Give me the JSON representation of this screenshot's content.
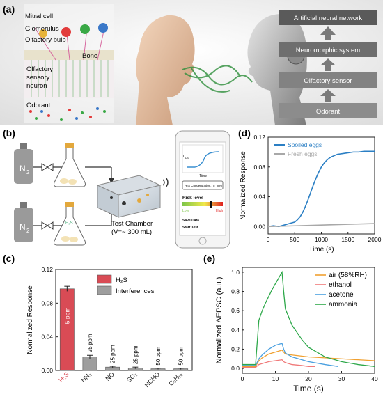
{
  "panel_letters": {
    "a": "(a)",
    "b": "(b)",
    "c": "(c)",
    "d": "(d)",
    "e": "(e)"
  },
  "panel_a": {
    "bio_labels": [
      "Mitral cell",
      "Glomerulus",
      "Olfactory bulb",
      "Bone",
      "Olfactory sensory neuron",
      "Odorant"
    ],
    "sensory_neuron_line1": "Olfactory",
    "sensory_neuron_line2": "sensory",
    "sensory_neuron_line3": "neuron",
    "artificial_stack": [
      "Artificial neural network",
      "Neuromorphic system",
      "Olfactory sensor",
      "Odorant"
    ]
  },
  "panel_b": {
    "cylinder_label": "N",
    "cylinder_sub": "2",
    "flask_gas": "H₂S",
    "chamber_title": "Test Chamber",
    "chamber_volume": "(V=~ 300 mL)",
    "phone": {
      "ylabel": "I",
      "ylabel_sub": "DS",
      "xlabel": "Time",
      "concentration_label": "H₂S Concentration:",
      "concentration_value": "5",
      "concentration_unit": "ppm",
      "risk_title": "Risk level",
      "risk_low": "Low",
      "risk_high": "High",
      "buttons": [
        "Save Data",
        "Start Test"
      ]
    },
    "colors": {
      "risk_low": "#7ec64a",
      "risk_high": "#e02020"
    }
  },
  "chart_data": [
    {
      "panel": "c",
      "type": "bar",
      "ylabel": "Normalized Response",
      "ylim": [
        0,
        0.12
      ],
      "yticks": [
        "0.00",
        "0.04",
        "0.08",
        "0.12"
      ],
      "categories": [
        "H₂S",
        "NH₃",
        "NO",
        "SO₂",
        "HCHO",
        "C₈H₁₀"
      ],
      "series": [
        {
          "name": "H₂S",
          "color": "#d94b55",
          "values": [
            0.097,
            null,
            null,
            null,
            null,
            null
          ],
          "errors": [
            0.003,
            null,
            null,
            null,
            null,
            null
          ]
        },
        {
          "name": "Interferences",
          "color": "#9e9e9e",
          "values": [
            null,
            0.016,
            0.004,
            0.003,
            0.002,
            0.002
          ],
          "errors": [
            null,
            0.002,
            0.001,
            0.001,
            0.0008,
            0.0008
          ]
        }
      ],
      "bar_labels": [
        "5 ppm",
        "25 ppm",
        "25 ppm",
        "25 ppm",
        "50 ppm",
        "50 ppm"
      ],
      "legend": "top-right"
    },
    {
      "panel": "d",
      "type": "line",
      "xlabel": "Time (s)",
      "ylabel": "Normalized Response",
      "xlim": [
        0,
        2000
      ],
      "ylim": [
        -0.01,
        0.12
      ],
      "xticks": [
        "0",
        "500",
        "1000",
        "1500",
        "2000"
      ],
      "yticks": [
        "0.00",
        "0.04",
        "0.08",
        "0.12"
      ],
      "legend": "top-left",
      "series": [
        {
          "name": "Spoiled eggs",
          "color": "#2b7fc4",
          "x": [
            0,
            100,
            200,
            300,
            400,
            500,
            550,
            600,
            650,
            700,
            750,
            800,
            850,
            900,
            950,
            1000,
            1050,
            1100,
            1150,
            1200,
            1300,
            1400,
            1500,
            1600,
            1700,
            1800,
            1900,
            2000
          ],
          "y": [
            0,
            0.001,
            0,
            0.002,
            0.004,
            0.006,
            0.009,
            0.013,
            0.019,
            0.027,
            0.036,
            0.046,
            0.056,
            0.065,
            0.073,
            0.08,
            0.085,
            0.089,
            0.092,
            0.094,
            0.097,
            0.098,
            0.099,
            0.1,
            0.1,
            0.101,
            0.101,
            0.101
          ]
        },
        {
          "name": "Fresh eggs",
          "color": "#a8a8a8",
          "x": [
            0,
            500,
            1000,
            1500,
            2000
          ],
          "y": [
            0,
            0.001,
            0.002,
            0.003,
            0.004
          ]
        }
      ]
    },
    {
      "panel": "e",
      "type": "line",
      "xlabel": "Time (s)",
      "ylabel": "Normalized ΔEPSC (a.u.)",
      "xlim": [
        0,
        40
      ],
      "ylim": [
        -0.05,
        1.05
      ],
      "xticks": [
        "0",
        "10",
        "20",
        "30",
        "40"
      ],
      "yticks": [
        "0.0",
        "0.2",
        "0.4",
        "0.6",
        "0.8",
        "1.0"
      ],
      "legend": "top-right",
      "series": [
        {
          "name": "air (58%RH)",
          "color": "#f0a030",
          "x": [
            0,
            4,
            5,
            6,
            7,
            8,
            9,
            10,
            11,
            12,
            12.5,
            13,
            15,
            20,
            25,
            30,
            35,
            40
          ],
          "y": [
            0.02,
            0.02,
            0.08,
            0.11,
            0.13,
            0.15,
            0.16,
            0.17,
            0.18,
            0.19,
            0.17,
            0.15,
            0.14,
            0.12,
            0.11,
            0.1,
            0.09,
            0.08
          ]
        },
        {
          "name": "ethanol",
          "color": "#f07a7a",
          "x": [
            0,
            4,
            5,
            6,
            8,
            10,
            12,
            12.5,
            13,
            15,
            18,
            20,
            22
          ],
          "y": [
            0.01,
            0.01,
            0.04,
            0.05,
            0.07,
            0.08,
            0.09,
            0.07,
            0.06,
            0.04,
            0.03,
            0.02,
            0.02
          ]
        },
        {
          "name": "acetone",
          "color": "#4aa0e0",
          "x": [
            0,
            4,
            5,
            6,
            7,
            8,
            9,
            10,
            11,
            12,
            12.5,
            13,
            15,
            20,
            25,
            29
          ],
          "y": [
            0.03,
            0.03,
            0.1,
            0.14,
            0.17,
            0.2,
            0.22,
            0.24,
            0.25,
            0.26,
            0.2,
            0.16,
            0.12,
            0.07,
            0.04,
            0.02
          ]
        },
        {
          "name": "ammonia",
          "color": "#2ea84a",
          "x": [
            0,
            4,
            5,
            6,
            7,
            8,
            9,
            10,
            11,
            12,
            12.5,
            13,
            15,
            18,
            20,
            25,
            30,
            35,
            40
          ],
          "y": [
            0.04,
            0.04,
            0.5,
            0.6,
            0.68,
            0.75,
            0.82,
            0.88,
            0.94,
            1.0,
            0.8,
            0.62,
            0.45,
            0.3,
            0.22,
            0.12,
            0.07,
            0.04,
            0.02
          ]
        }
      ]
    }
  ]
}
